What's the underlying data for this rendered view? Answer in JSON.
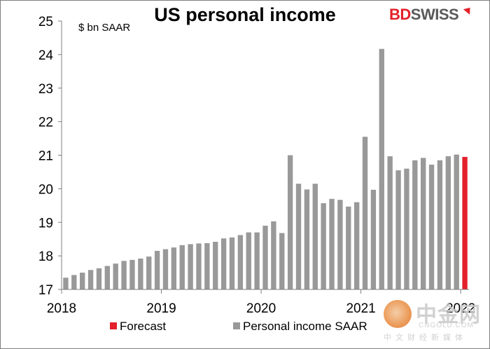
{
  "chart_data": {
    "type": "bar",
    "title": "US personal income",
    "ylabel": "$ bn SAAR",
    "ylim": [
      17,
      25
    ],
    "yticks": [
      17,
      18,
      19,
      20,
      21,
      22,
      23,
      24,
      25
    ],
    "xticks": [
      "2018",
      "2019",
      "2020",
      "2021",
      "2022"
    ],
    "legend_position": "bottom",
    "series": [
      {
        "name": "Personal income SAAR",
        "color": "#999999",
        "values": [
          17.35,
          17.43,
          17.5,
          17.58,
          17.63,
          17.7,
          17.77,
          17.85,
          17.88,
          17.92,
          17.98,
          18.15,
          18.2,
          18.25,
          18.32,
          18.35,
          18.37,
          18.38,
          18.42,
          18.52,
          18.55,
          18.62,
          18.7,
          18.7,
          18.9,
          19.03,
          18.68,
          21.0,
          20.15,
          19.98,
          20.15,
          19.57,
          19.7,
          19.67,
          19.47,
          19.6,
          21.55,
          19.97,
          24.17,
          20.97,
          20.55,
          20.6,
          20.85,
          20.92,
          20.72,
          20.85,
          20.97,
          21.02
        ]
      },
      {
        "name": "Forecast",
        "color": "#e3202a",
        "values": [
          null,
          null,
          null,
          null,
          null,
          null,
          null,
          null,
          null,
          null,
          null,
          null,
          null,
          null,
          null,
          null,
          null,
          null,
          null,
          null,
          null,
          null,
          null,
          null,
          null,
          null,
          null,
          null,
          null,
          null,
          null,
          null,
          null,
          null,
          null,
          null,
          null,
          null,
          null,
          null,
          null,
          null,
          null,
          null,
          null,
          null,
          null,
          null,
          20.95
        ]
      }
    ]
  },
  "brand": {
    "logo_bd": "BD",
    "logo_swiss": "SWISS",
    "logo_color": "#e3202a"
  },
  "watermark": {
    "chinese": "中金网",
    "domain": "CNGOLD.COM",
    "subtitle": "中文财经新媒体"
  }
}
